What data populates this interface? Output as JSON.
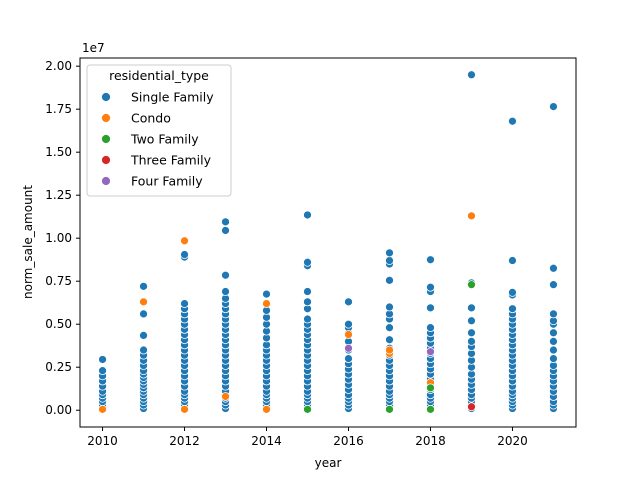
{
  "chart_data": {
    "type": "scatter",
    "xlabel": "year",
    "ylabel": "norm_sale_amount",
    "y_offset_label": "1e7",
    "xlim": [
      2009.45,
      2021.55
    ],
    "ylim": [
      -0.975,
      20.475
    ],
    "y_scale_note": "values in units of 1e7",
    "x_ticks": [
      2010,
      2012,
      2014,
      2016,
      2018,
      2020
    ],
    "x_tick_labels": [
      "2010",
      "2012",
      "2014",
      "2016",
      "2018",
      "2020"
    ],
    "y_ticks": [
      0.0,
      2.5,
      5.0,
      7.5,
      10.0,
      12.5,
      15.0,
      17.5,
      20.0
    ],
    "y_tick_labels": [
      "0.00",
      "0.25",
      "0.50",
      "0.75",
      "1.00",
      "1.25",
      "1.50",
      "1.75",
      "2.00"
    ],
    "grid": false,
    "legend_title": "residential_type",
    "legend_position": "top-left",
    "series": [
      {
        "name": "Single Family",
        "color": "#1f77b4",
        "points": [
          [
            2010,
            0.1
          ],
          [
            2010,
            0.3
          ],
          [
            2010,
            0.5
          ],
          [
            2010,
            0.7
          ],
          [
            2010,
            0.9
          ],
          [
            2010,
            1.1
          ],
          [
            2010,
            1.4
          ],
          [
            2010,
            1.7
          ],
          [
            2010,
            2.0
          ],
          [
            2010,
            2.3
          ],
          [
            2010,
            2.95
          ],
          [
            2011,
            0.1
          ],
          [
            2011,
            0.3
          ],
          [
            2011,
            0.5
          ],
          [
            2011,
            0.7
          ],
          [
            2011,
            0.9
          ],
          [
            2011,
            1.1
          ],
          [
            2011,
            1.3
          ],
          [
            2011,
            1.5
          ],
          [
            2011,
            1.7
          ],
          [
            2011,
            1.9
          ],
          [
            2011,
            2.1
          ],
          [
            2011,
            2.3
          ],
          [
            2011,
            2.6
          ],
          [
            2011,
            2.9
          ],
          [
            2011,
            3.2
          ],
          [
            2011,
            3.5
          ],
          [
            2011,
            4.35
          ],
          [
            2011,
            5.6
          ],
          [
            2011,
            7.2
          ],
          [
            2012,
            0.1
          ],
          [
            2012,
            0.3
          ],
          [
            2012,
            0.5
          ],
          [
            2012,
            0.7
          ],
          [
            2012,
            0.9
          ],
          [
            2012,
            1.1
          ],
          [
            2012,
            1.4
          ],
          [
            2012,
            1.7
          ],
          [
            2012,
            2.0
          ],
          [
            2012,
            2.3
          ],
          [
            2012,
            2.6
          ],
          [
            2012,
            2.9
          ],
          [
            2012,
            3.2
          ],
          [
            2012,
            3.5
          ],
          [
            2012,
            3.8
          ],
          [
            2012,
            4.1
          ],
          [
            2012,
            4.4
          ],
          [
            2012,
            4.7
          ],
          [
            2012,
            5.0
          ],
          [
            2012,
            5.3
          ],
          [
            2012,
            5.6
          ],
          [
            2012,
            5.9
          ],
          [
            2012,
            6.2
          ],
          [
            2012,
            8.9
          ],
          [
            2012,
            9.05
          ],
          [
            2013,
            0.1
          ],
          [
            2013,
            0.3
          ],
          [
            2013,
            0.5
          ],
          [
            2013,
            0.7
          ],
          [
            2013,
            0.9
          ],
          [
            2013,
            1.1
          ],
          [
            2013,
            1.4
          ],
          [
            2013,
            1.7
          ],
          [
            2013,
            2.0
          ],
          [
            2013,
            2.3
          ],
          [
            2013,
            2.6
          ],
          [
            2013,
            2.9
          ],
          [
            2013,
            3.2
          ],
          [
            2013,
            3.5
          ],
          [
            2013,
            3.8
          ],
          [
            2013,
            4.1
          ],
          [
            2013,
            4.4
          ],
          [
            2013,
            4.7
          ],
          [
            2013,
            5.0
          ],
          [
            2013,
            5.3
          ],
          [
            2013,
            5.6
          ],
          [
            2013,
            5.9
          ],
          [
            2013,
            6.2
          ],
          [
            2013,
            6.5
          ],
          [
            2013,
            6.9
          ],
          [
            2013,
            7.85
          ],
          [
            2013,
            10.45
          ],
          [
            2013,
            10.95
          ],
          [
            2014,
            0.1
          ],
          [
            2014,
            0.3
          ],
          [
            2014,
            0.5
          ],
          [
            2014,
            0.7
          ],
          [
            2014,
            0.9
          ],
          [
            2014,
            1.1
          ],
          [
            2014,
            1.4
          ],
          [
            2014,
            1.7
          ],
          [
            2014,
            2.0
          ],
          [
            2014,
            2.3
          ],
          [
            2014,
            2.6
          ],
          [
            2014,
            2.9
          ],
          [
            2014,
            3.2
          ],
          [
            2014,
            3.5
          ],
          [
            2014,
            3.8
          ],
          [
            2014,
            4.2
          ],
          [
            2014,
            4.6
          ],
          [
            2014,
            5.0
          ],
          [
            2014,
            5.4
          ],
          [
            2014,
            5.8
          ],
          [
            2014,
            6.75
          ],
          [
            2015,
            0.1
          ],
          [
            2015,
            0.3
          ],
          [
            2015,
            0.5
          ],
          [
            2015,
            0.7
          ],
          [
            2015,
            0.9
          ],
          [
            2015,
            1.1
          ],
          [
            2015,
            1.4
          ],
          [
            2015,
            1.7
          ],
          [
            2015,
            2.0
          ],
          [
            2015,
            2.3
          ],
          [
            2015,
            2.6
          ],
          [
            2015,
            2.9
          ],
          [
            2015,
            3.2
          ],
          [
            2015,
            3.5
          ],
          [
            2015,
            3.8
          ],
          [
            2015,
            4.1
          ],
          [
            2015,
            4.4
          ],
          [
            2015,
            4.7
          ],
          [
            2015,
            5.0
          ],
          [
            2015,
            5.3
          ],
          [
            2015,
            5.9
          ],
          [
            2015,
            6.3
          ],
          [
            2015,
            6.9
          ],
          [
            2015,
            8.4
          ],
          [
            2015,
            8.6
          ],
          [
            2015,
            11.35
          ],
          [
            2016,
            0.1
          ],
          [
            2016,
            0.3
          ],
          [
            2016,
            0.5
          ],
          [
            2016,
            0.7
          ],
          [
            2016,
            0.9
          ],
          [
            2016,
            1.2
          ],
          [
            2016,
            1.5
          ],
          [
            2016,
            1.8
          ],
          [
            2016,
            2.1
          ],
          [
            2016,
            2.4
          ],
          [
            2016,
            2.7
          ],
          [
            2016,
            3.0
          ],
          [
            2016,
            3.5
          ],
          [
            2016,
            4.0
          ],
          [
            2016,
            4.5
          ],
          [
            2016,
            4.8
          ],
          [
            2016,
            5.0
          ],
          [
            2016,
            6.3
          ],
          [
            2017,
            0.1
          ],
          [
            2017,
            0.3
          ],
          [
            2017,
            0.5
          ],
          [
            2017,
            0.7
          ],
          [
            2017,
            0.9
          ],
          [
            2017,
            1.1
          ],
          [
            2017,
            1.4
          ],
          [
            2017,
            1.7
          ],
          [
            2017,
            2.0
          ],
          [
            2017,
            2.3
          ],
          [
            2017,
            2.6
          ],
          [
            2017,
            2.9
          ],
          [
            2017,
            3.2
          ],
          [
            2017,
            3.6
          ],
          [
            2017,
            4.1
          ],
          [
            2017,
            4.8
          ],
          [
            2017,
            5.3
          ],
          [
            2017,
            5.6
          ],
          [
            2017,
            6.0
          ],
          [
            2017,
            7.55
          ],
          [
            2017,
            8.5
          ],
          [
            2017,
            8.7
          ],
          [
            2017,
            9.15
          ],
          [
            2018,
            0.1
          ],
          [
            2018,
            0.3
          ],
          [
            2018,
            0.5
          ],
          [
            2018,
            0.7
          ],
          [
            2018,
            0.9
          ],
          [
            2018,
            1.2
          ],
          [
            2018,
            1.5
          ],
          [
            2018,
            1.8
          ],
          [
            2018,
            2.1
          ],
          [
            2018,
            2.4
          ],
          [
            2018,
            2.7
          ],
          [
            2018,
            3.0
          ],
          [
            2018,
            3.3
          ],
          [
            2018,
            3.6
          ],
          [
            2018,
            3.9
          ],
          [
            2018,
            4.2
          ],
          [
            2018,
            4.5
          ],
          [
            2018,
            4.8
          ],
          [
            2018,
            5.95
          ],
          [
            2018,
            6.9
          ],
          [
            2018,
            7.15
          ],
          [
            2018,
            8.75
          ],
          [
            2019,
            0.1
          ],
          [
            2019,
            0.3
          ],
          [
            2019,
            0.5
          ],
          [
            2019,
            0.7
          ],
          [
            2019,
            0.9
          ],
          [
            2019,
            1.2
          ],
          [
            2019,
            1.5
          ],
          [
            2019,
            1.8
          ],
          [
            2019,
            2.1
          ],
          [
            2019,
            2.5
          ],
          [
            2019,
            2.9
          ],
          [
            2019,
            3.3
          ],
          [
            2019,
            3.7
          ],
          [
            2019,
            4.0
          ],
          [
            2019,
            4.5
          ],
          [
            2019,
            5.2
          ],
          [
            2019,
            5.95
          ],
          [
            2019,
            7.4
          ],
          [
            2019,
            19.5
          ],
          [
            2020,
            0.1
          ],
          [
            2020,
            0.3
          ],
          [
            2020,
            0.5
          ],
          [
            2020,
            0.7
          ],
          [
            2020,
            0.9
          ],
          [
            2020,
            1.1
          ],
          [
            2020,
            1.4
          ],
          [
            2020,
            1.7
          ],
          [
            2020,
            2.0
          ],
          [
            2020,
            2.3
          ],
          [
            2020,
            2.6
          ],
          [
            2020,
            2.9
          ],
          [
            2020,
            3.2
          ],
          [
            2020,
            3.5
          ],
          [
            2020,
            3.8
          ],
          [
            2020,
            4.1
          ],
          [
            2020,
            4.4
          ],
          [
            2020,
            4.7
          ],
          [
            2020,
            5.0
          ],
          [
            2020,
            5.3
          ],
          [
            2020,
            5.6
          ],
          [
            2020,
            5.9
          ],
          [
            2020,
            6.7
          ],
          [
            2020,
            6.85
          ],
          [
            2020,
            8.7
          ],
          [
            2020,
            16.8
          ],
          [
            2021,
            0.1
          ],
          [
            2021,
            0.3
          ],
          [
            2021,
            0.5
          ],
          [
            2021,
            0.8
          ],
          [
            2021,
            1.1
          ],
          [
            2021,
            1.4
          ],
          [
            2021,
            1.7
          ],
          [
            2021,
            2.0
          ],
          [
            2021,
            2.3
          ],
          [
            2021,
            2.6
          ],
          [
            2021,
            3.0
          ],
          [
            2021,
            3.5
          ],
          [
            2021,
            4.0
          ],
          [
            2021,
            4.5
          ],
          [
            2021,
            5.0
          ],
          [
            2021,
            5.2
          ],
          [
            2021,
            5.6
          ],
          [
            2021,
            7.3
          ],
          [
            2021,
            8.25
          ],
          [
            2021,
            17.65
          ]
        ]
      },
      {
        "name": "Condo",
        "color": "#ff7f0e",
        "points": [
          [
            2010,
            0.05
          ],
          [
            2011,
            6.3
          ],
          [
            2012,
            0.05
          ],
          [
            2012,
            9.85
          ],
          [
            2013,
            0.8
          ],
          [
            2014,
            0.05
          ],
          [
            2014,
            6.2
          ],
          [
            2016,
            4.4
          ],
          [
            2017,
            3.3
          ],
          [
            2017,
            3.5
          ],
          [
            2018,
            1.6
          ],
          [
            2019,
            11.3
          ]
        ]
      },
      {
        "name": "Two Family",
        "color": "#2ca02c",
        "points": [
          [
            2015,
            0.05
          ],
          [
            2017,
            0.05
          ],
          [
            2018,
            0.05
          ],
          [
            2018,
            1.3
          ],
          [
            2019,
            7.3
          ]
        ]
      },
      {
        "name": "Three Family",
        "color": "#d62728",
        "points": [
          [
            2019,
            0.2
          ]
        ]
      },
      {
        "name": "Four Family",
        "color": "#9467bd",
        "points": [
          [
            2016,
            3.6
          ],
          [
            2018,
            3.4
          ]
        ]
      }
    ]
  }
}
